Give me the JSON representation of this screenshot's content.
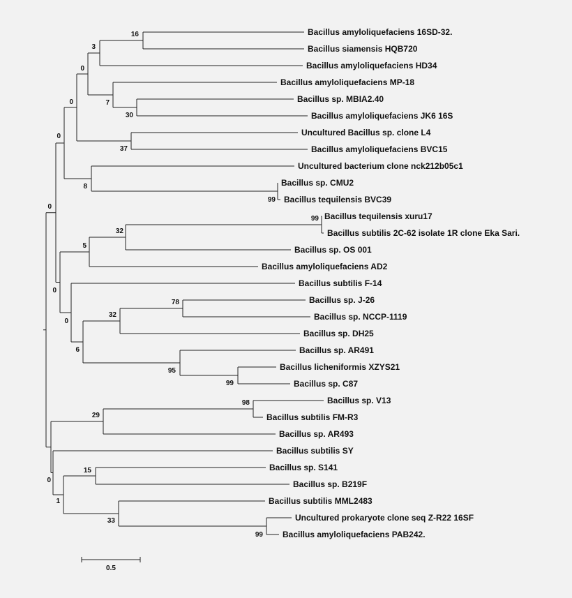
{
  "tree": {
    "leaves": [
      "Bacillus amyloliquefaciens 16SD-32.",
      "Bacillus siamensis HQB720",
      "Bacillus amyloliquefaciens HD34",
      "Bacillus amyloliquefaciens MP-18",
      "Bacillus sp. MBIA2.40",
      "Bacillus amyloliquefaciens JK6 16S",
      "Uncultured Bacillus sp. clone L4",
      "Bacillus amyloliquefaciens BVC15",
      "Uncultured bacterium clone nck212b05c1",
      "Bacillus sp. CMU2",
      "Bacillus tequilensis BVC39",
      "Bacillus tequilensis xuru17",
      "Bacillus subtilis 2C-62 isolate 1R clone Eka Sari.",
      "Bacillus sp. OS 001",
      "Bacillus amyloliquefaciens AD2",
      "Bacillus subtilis F-14",
      "Bacillus sp. J-26",
      "Bacillus sp. NCCP-1119",
      "Bacillus sp. DH25",
      "Bacillus sp. AR491",
      "Bacillus licheniformis XZYS21",
      "Bacillus sp. C87",
      "Bacillus sp. V13",
      "Bacillus subtilis FM-R3",
      "Bacillus sp. AR493",
      "Bacillus subtilis SY",
      "Bacillus sp. S141",
      "Bacillus sp. B219F",
      "Bacillus subtilis MML2483",
      "Uncultured prokaryote clone seq Z-R22 16SF",
      "Bacillus amyloliquefaciens PAB242."
    ],
    "bootstrap": [
      "16",
      "3",
      "0",
      "7",
      "30",
      "0",
      "37",
      "0",
      "8",
      "99",
      "0",
      "99",
      "32",
      "5",
      "0",
      "78",
      "32",
      "0",
      "6",
      "95",
      "99",
      "98",
      "29",
      "0",
      "15",
      "1",
      "33",
      "99"
    ]
  },
  "scale_bar": {
    "label": "0.5",
    "value": 0.5
  }
}
